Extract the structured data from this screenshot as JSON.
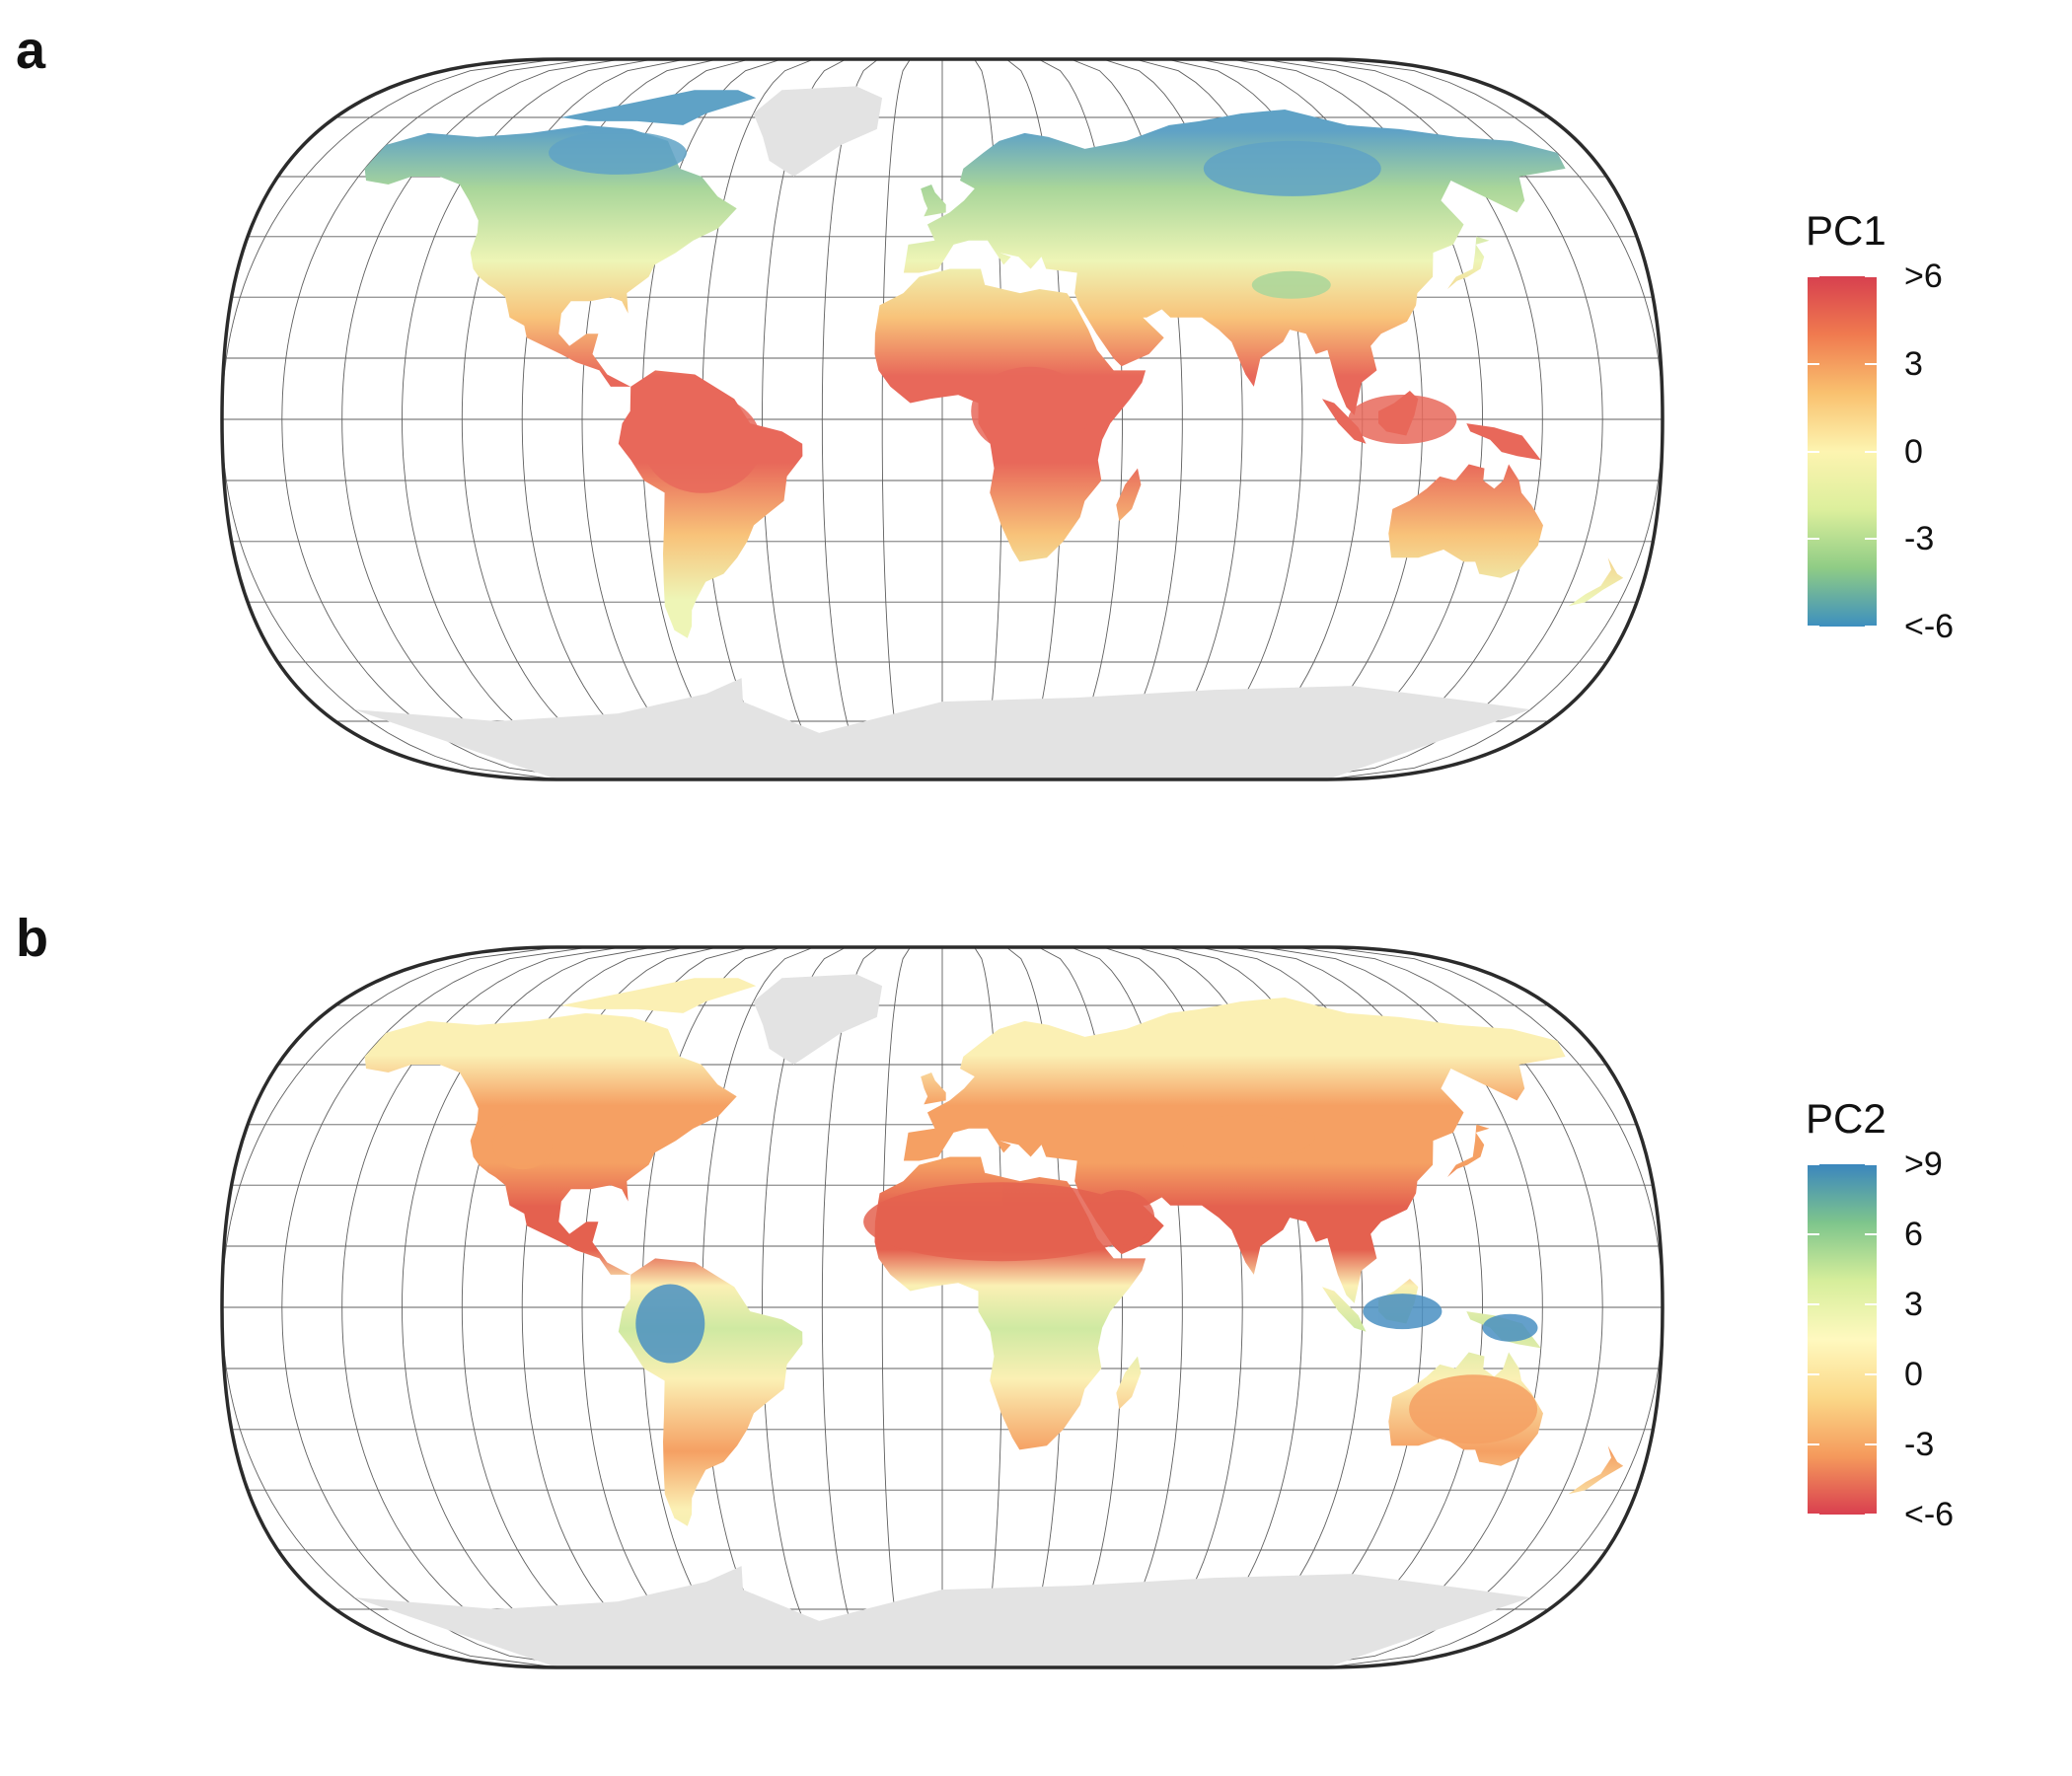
{
  "panels": [
    {
      "letter": "a",
      "legend": {
        "title": "PC1",
        "ticks": [
          ">6",
          "3",
          "0",
          "-3",
          "<-6"
        ],
        "gradient_top_to_bottom": [
          "#d7404f",
          "#f07a4f",
          "#f9c16f",
          "#fdf4b0",
          "#dcef9c",
          "#8fcc85",
          "#3d8fbf"
        ]
      }
    },
    {
      "letter": "b",
      "legend": {
        "title": "PC2",
        "ticks": [
          ">9",
          "6",
          "3",
          "0",
          "-3",
          "<-6"
        ],
        "gradient_top_to_bottom": [
          "#3b86be",
          "#7ec58c",
          "#d6ee9b",
          "#fff9bf",
          "#fbd888",
          "#f59a5c",
          "#d93f4f"
        ]
      }
    }
  ],
  "map_colors": {
    "panel_a": {
      "north": "#5fa2c6",
      "boreal": "#a9d69a",
      "temperate": "#eef5b6",
      "subtropical": "#f8c279",
      "tropical": "#e8685a",
      "antarctica": "#e3e3e3"
    },
    "panel_b": {
      "wet": "#4a90c2",
      "moist": "#cfe9a2",
      "neutral": "#fbf0b4",
      "dry": "#f5a063",
      "desert": "#e4614f",
      "antarctica": "#e3e3e3"
    }
  }
}
